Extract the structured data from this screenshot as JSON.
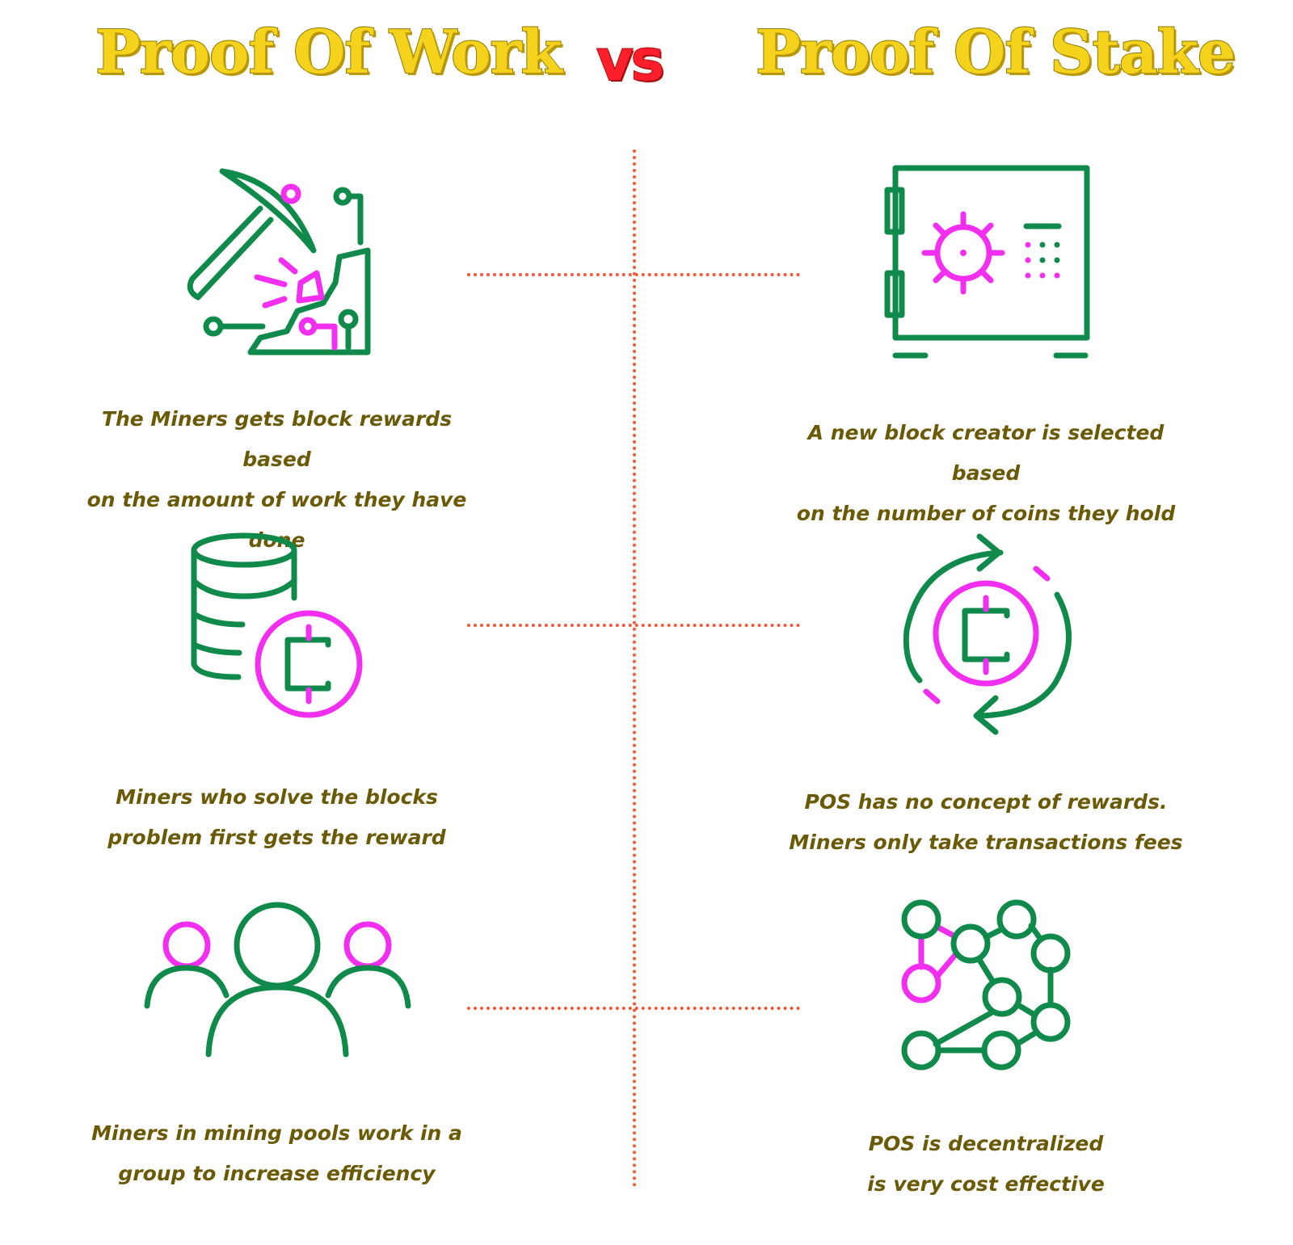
{
  "header": {
    "left_title": "Proof Of Work",
    "vs_label": "vs",
    "right_title": "Proof Of Stake"
  },
  "colors": {
    "title": "#f5d21c",
    "vs": "#ff1f2a",
    "icon_green": "#0f8a4a",
    "icon_magenta": "#f22ef0",
    "caption": "#6b5a05",
    "divider": "#f0583a"
  },
  "rows": [
    {
      "pow": {
        "icon": "pickaxe-mining-icon",
        "lines": [
          "The Miners gets block rewards based",
          "on the amount of work they have done"
        ]
      },
      "pos": {
        "icon": "safe-vault-icon",
        "lines": [
          "A new block creator is selected based",
          "on the number of coins they hold"
        ]
      }
    },
    {
      "pow": {
        "icon": "coin-stack-icon",
        "lines": [
          "Miners who solve the blocks",
          "problem first gets the reward"
        ]
      },
      "pos": {
        "icon": "coin-cycle-icon",
        "lines": [
          "POS has no concept of rewards.",
          "Miners only take transactions fees"
        ]
      }
    },
    {
      "pow": {
        "icon": "group-people-icon",
        "lines": [
          "Miners in mining pools work in a",
          "group to increase efficiency"
        ]
      },
      "pos": {
        "icon": "network-nodes-icon",
        "lines": [
          "POS is decentralized",
          "is very cost effective"
        ]
      }
    }
  ]
}
